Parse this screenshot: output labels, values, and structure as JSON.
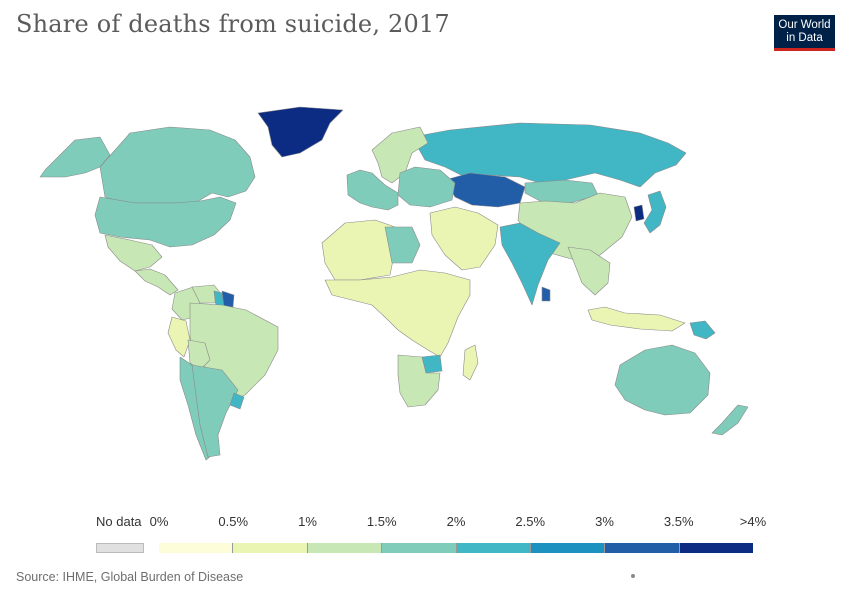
{
  "title": "Share of deaths from suicide, 2017",
  "logo": {
    "line1": "Our World",
    "line2": "in Data"
  },
  "source": "Source: IHME, Global Burden of Disease",
  "colors": {
    "no_data": "#e0e0e0",
    "bins": [
      "#fefdda",
      "#eaf5b4",
      "#c7e7b4",
      "#7fccbb",
      "#41b6c4",
      "#1d91c0",
      "#225ea8",
      "#0c2c84"
    ]
  },
  "legend": {
    "no_data_label": "No data",
    "tick_labels": [
      "0%",
      "0.5%",
      "1%",
      "1.5%",
      "2%",
      "2.5%",
      "3%",
      "3.5%",
      ">4%"
    ]
  },
  "chart_data": {
    "type": "choropleth",
    "indicator": "Share of deaths from suicide",
    "year": 2017,
    "unit": "%",
    "bin_edges": [
      0,
      0.5,
      1,
      1.5,
      2,
      2.5,
      3,
      3.5,
      4
    ],
    "regions": [
      {
        "name": "Greenland",
        "bin": 7
      },
      {
        "name": "Canada",
        "bin": 3
      },
      {
        "name": "Alaska (USA)",
        "bin": 3
      },
      {
        "name": "United States",
        "bin": 3
      },
      {
        "name": "Mexico",
        "bin": 2
      },
      {
        "name": "Central America",
        "bin": 2
      },
      {
        "name": "Colombia",
        "bin": 2
      },
      {
        "name": "Venezuela",
        "bin": 2
      },
      {
        "name": "Guyana",
        "bin": 4
      },
      {
        "name": "Suriname",
        "bin": 6
      },
      {
        "name": "Brazil",
        "bin": 2
      },
      {
        "name": "Peru",
        "bin": 1
      },
      {
        "name": "Bolivia",
        "bin": 2
      },
      {
        "name": "Chile",
        "bin": 3
      },
      {
        "name": "Argentina",
        "bin": 3
      },
      {
        "name": "Uruguay",
        "bin": 4
      },
      {
        "name": "Russia",
        "bin": 4
      },
      {
        "name": "Kazakhstan",
        "bin": 6
      },
      {
        "name": "Scandinavia",
        "bin": 2
      },
      {
        "name": "Western Europe",
        "bin": 3
      },
      {
        "name": "Eastern Europe",
        "bin": 3
      },
      {
        "name": "Mongolia",
        "bin": 3
      },
      {
        "name": "China",
        "bin": 2
      },
      {
        "name": "South Korea",
        "bin": 7
      },
      {
        "name": "Japan",
        "bin": 4
      },
      {
        "name": "India",
        "bin": 4
      },
      {
        "name": "Sri Lanka",
        "bin": 6
      },
      {
        "name": "Middle East",
        "bin": 1
      },
      {
        "name": "North Africa",
        "bin": 1
      },
      {
        "name": "Libya",
        "bin": 3
      },
      {
        "name": "Sub-Saharan Africa",
        "bin": 1
      },
      {
        "name": "Zimbabwe",
        "bin": 4
      },
      {
        "name": "Southern Africa",
        "bin": 2
      },
      {
        "name": "Madagascar",
        "bin": 1
      },
      {
        "name": "Southeast Asia",
        "bin": 2
      },
      {
        "name": "Indonesia",
        "bin": 1
      },
      {
        "name": "Papua New Guinea",
        "bin": 4
      },
      {
        "name": "Australia",
        "bin": 3
      },
      {
        "name": "New Zealand",
        "bin": 3
      }
    ]
  }
}
